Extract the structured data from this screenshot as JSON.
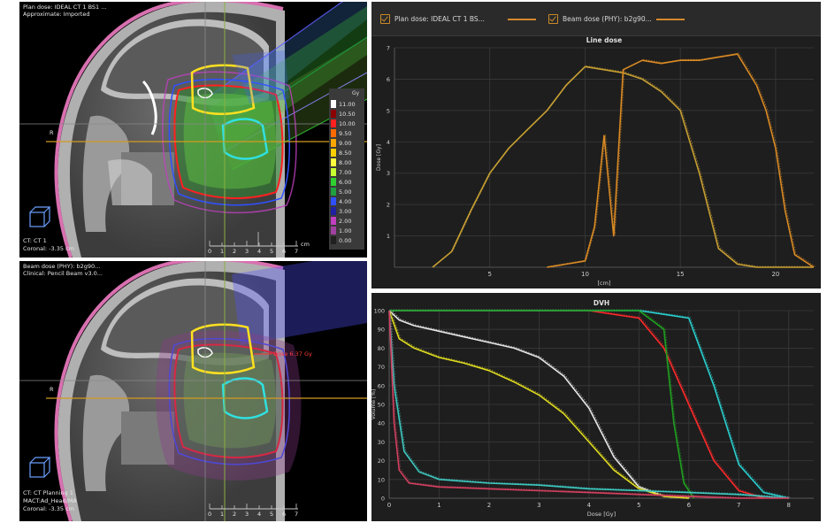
{
  "viewer_top": {
    "line1": "Plan dose: IDEAL CT 1 BS1 ...",
    "line2": "Approximate: Imported",
    "bottom1": "CT: CT 1",
    "bottom2": "Coronal: -3.35 cm",
    "orientation": "R",
    "scale_unit": "cm",
    "scale_ticks": [
      "0",
      "1",
      "2",
      "3",
      "4",
      "5",
      "6",
      "7"
    ]
  },
  "viewer_bottom": {
    "line1": "Beam dose (PHY): b2g90...",
    "line2": "Clinical: Pencil Beam v3.0...",
    "bottom1": "CT: CT Planning 1",
    "bottom2": "MACT:Ad_Head/MA",
    "bottom3": "Coronal: -3.35 cm",
    "orientation": "R",
    "dose_annotation": "Dose 6.37 Gy",
    "scale_ticks": [
      "0",
      "1",
      "2",
      "3",
      "4",
      "5",
      "6",
      "7"
    ]
  },
  "colorbar": {
    "unit": "Gy",
    "levels": [
      "11.00",
      "10.50",
      "10.00",
      "9.50",
      "9.00",
      "8.50",
      "8.00",
      "7.00",
      "6.00",
      "5.00",
      "4.00",
      "3.00",
      "2.00",
      "1.00",
      "0.00"
    ],
    "colors": [
      "#ffffff",
      "#8b0000",
      "#ff2020",
      "#ff6a00",
      "#ffa500",
      "#ffd000",
      "#ffff40",
      "#c8ff30",
      "#30d030",
      "#20a040",
      "#3050ff",
      "#2020a0",
      "#c040c0",
      "#a040a0",
      "#202020"
    ]
  },
  "line_dose_panel": {
    "legend": {
      "item1": "Plan dose: IDEAL CT 1 BS...",
      "item2": "Beam dose (PHY): b2g90..."
    },
    "legend_color": "#d4892a",
    "chart_data": {
      "type": "line",
      "title": "Line dose",
      "xlabel": "[cm]",
      "ylabel": "Dose [Gy]",
      "xlim": [
        0,
        22
      ],
      "ylim": [
        0,
        7
      ],
      "xticks": [
        "5",
        "10",
        "15",
        "20"
      ],
      "yticks": [
        "1",
        "2",
        "3",
        "4",
        "5",
        "6",
        "7"
      ],
      "series": [
        {
          "name": "Plan dose: IDEAL CT 1 BS...",
          "color": "#c8a032",
          "x": [
            2,
            3,
            4,
            5,
            6,
            7,
            8,
            9,
            10,
            11,
            12,
            13,
            14,
            15,
            16,
            17,
            18,
            19,
            20,
            21,
            22
          ],
          "y": [
            0,
            0.5,
            1.8,
            3.0,
            3.8,
            4.4,
            5.0,
            5.8,
            6.4,
            6.3,
            6.2,
            6.0,
            5.6,
            5.0,
            3.0,
            0.6,
            0.1,
            0,
            0,
            0,
            0
          ]
        },
        {
          "name": "Beam dose (PHY): b2g90...",
          "color": "#d98a24",
          "x": [
            8,
            9,
            10,
            10.5,
            11,
            11.5,
            12,
            13,
            14,
            15,
            16,
            17,
            18,
            19,
            19.5,
            20,
            20.5,
            21,
            22
          ],
          "y": [
            0,
            0.1,
            0.2,
            1.3,
            4.2,
            1.0,
            6.3,
            6.6,
            6.5,
            6.6,
            6.6,
            6.7,
            6.8,
            5.8,
            5.0,
            3.8,
            1.8,
            0.4,
            0
          ]
        }
      ]
    }
  },
  "dvh_panel": {
    "chart_data": {
      "type": "line",
      "title": "DVH",
      "xlabel": "Dose [Gy]",
      "ylabel": "Volume [%]",
      "xlim": [
        0,
        8.5
      ],
      "ylim": [
        0,
        100
      ],
      "xticks": [
        "0",
        "1",
        "2",
        "3",
        "4",
        "5",
        "6",
        "7",
        "8"
      ],
      "yticks": [
        "0",
        "10",
        "20",
        "30",
        "40",
        "50",
        "60",
        "70",
        "80",
        "90",
        "100"
      ],
      "series": [
        {
          "color": "#e8e8e8",
          "x": [
            0,
            0.2,
            0.5,
            1,
            1.5,
            2,
            2.5,
            3,
            3.5,
            4,
            4.5,
            5,
            5.5,
            6
          ],
          "y": [
            100,
            95,
            92,
            89,
            86,
            83,
            80,
            75,
            65,
            48,
            22,
            6,
            1,
            0
          ]
        },
        {
          "color": "#e0dc20",
          "x": [
            0,
            0.2,
            0.5,
            1,
            1.5,
            2,
            2.5,
            3,
            3.5,
            4,
            4.5,
            5,
            5.5,
            6
          ],
          "y": [
            100,
            85,
            80,
            75,
            72,
            68,
            62,
            55,
            45,
            30,
            15,
            5,
            1,
            0
          ]
        },
        {
          "color": "#ff2a2a",
          "x": [
            0,
            1,
            2,
            3,
            4,
            5,
            5.5,
            6,
            6.5,
            7,
            7.5
          ],
          "y": [
            100,
            100,
            100,
            100,
            100,
            96,
            80,
            50,
            20,
            4,
            0
          ]
        },
        {
          "color": "#2ad0d0",
          "x": [
            0,
            1,
            2,
            3,
            4,
            5,
            6,
            6.5,
            7,
            7.5,
            8
          ],
          "y": [
            100,
            100,
            100,
            100,
            100,
            100,
            96,
            60,
            18,
            3,
            0
          ]
        },
        {
          "color": "#20a020",
          "x": [
            0,
            1,
            2,
            3,
            4,
            5,
            5.5,
            5.7,
            5.9,
            6.1
          ],
          "y": [
            100,
            100,
            100,
            100,
            100,
            100,
            90,
            40,
            8,
            0
          ]
        },
        {
          "color": "#3ec8c0",
          "x": [
            0,
            0.1,
            0.3,
            0.6,
            1,
            2,
            3,
            4,
            5,
            6,
            7,
            8
          ],
          "y": [
            100,
            60,
            25,
            14,
            10,
            8,
            7,
            5,
            4,
            3,
            2,
            0
          ]
        },
        {
          "color": "#d24060",
          "x": [
            0,
            0.1,
            0.2,
            0.4,
            1,
            2,
            3,
            4,
            5,
            6,
            7,
            8
          ],
          "y": [
            100,
            40,
            15,
            8,
            6,
            5,
            4,
            3,
            2,
            1,
            0,
            0
          ]
        }
      ]
    }
  }
}
